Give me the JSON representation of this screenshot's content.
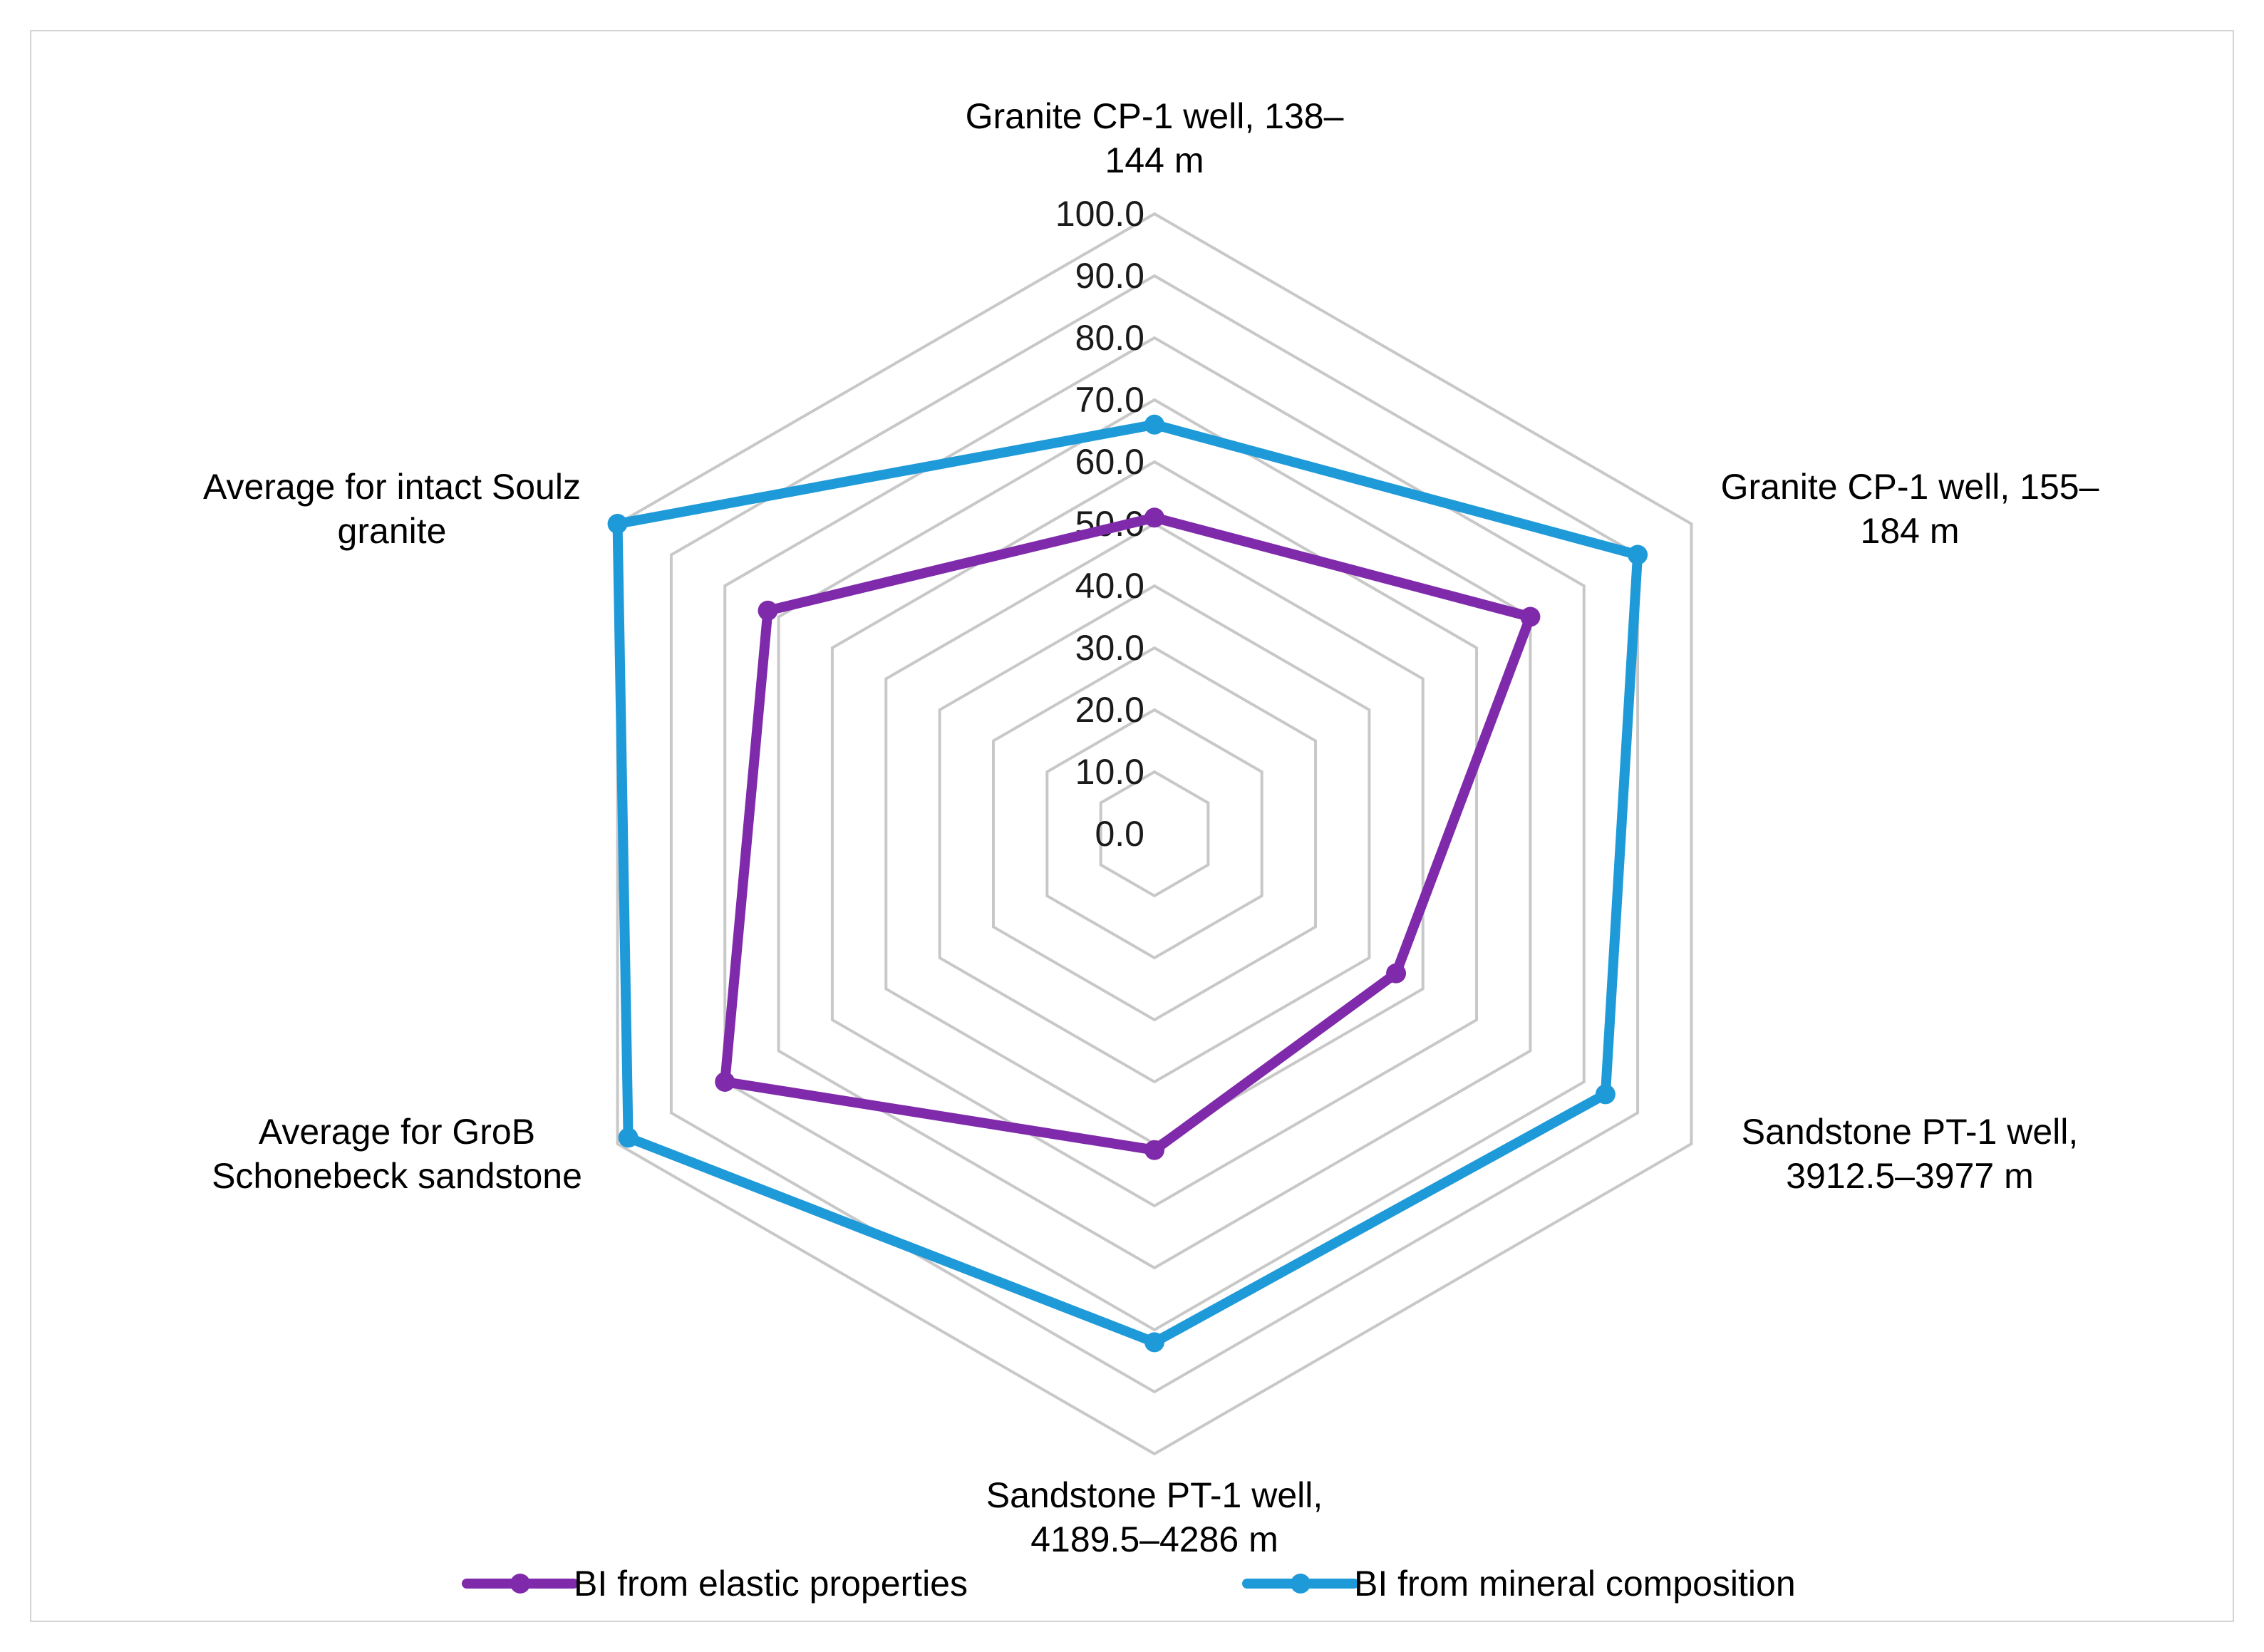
{
  "chart_data": {
    "type": "radar",
    "title": "",
    "categories": [
      [
        "Granite CP-1 well, 138–",
        "144 m"
      ],
      [
        "Granite CP-1 well, 155–",
        "184 m"
      ],
      [
        "Sandstone PT-1 well,",
        "3912.5–3977 m"
      ],
      [
        "Sandstone PT-1 well,",
        "4189.5–4286 m"
      ],
      [
        "Average for GroB",
        "Schonebeck sandstone"
      ],
      [
        "Average for intact Soulz",
        "granite"
      ]
    ],
    "series": [
      {
        "name": "BI from elastic properties",
        "color": "#7f2aab",
        "values": [
          51.0,
          70.0,
          45.0,
          51.0,
          80.0,
          72.0
        ]
      },
      {
        "name": "BI from mineral composition",
        "color": "#1f9ad8",
        "values": [
          66.0,
          90.0,
          84.0,
          82.0,
          98.0,
          100.0
        ]
      }
    ],
    "rlim": [
      0,
      100
    ],
    "ticks": [
      "0.0",
      "10.0",
      "20.0",
      "30.0",
      "40.0",
      "50.0",
      "60.0",
      "70.0",
      "80.0",
      "90.0",
      "100.0"
    ],
    "grid": true,
    "legend_position": "bottom"
  }
}
